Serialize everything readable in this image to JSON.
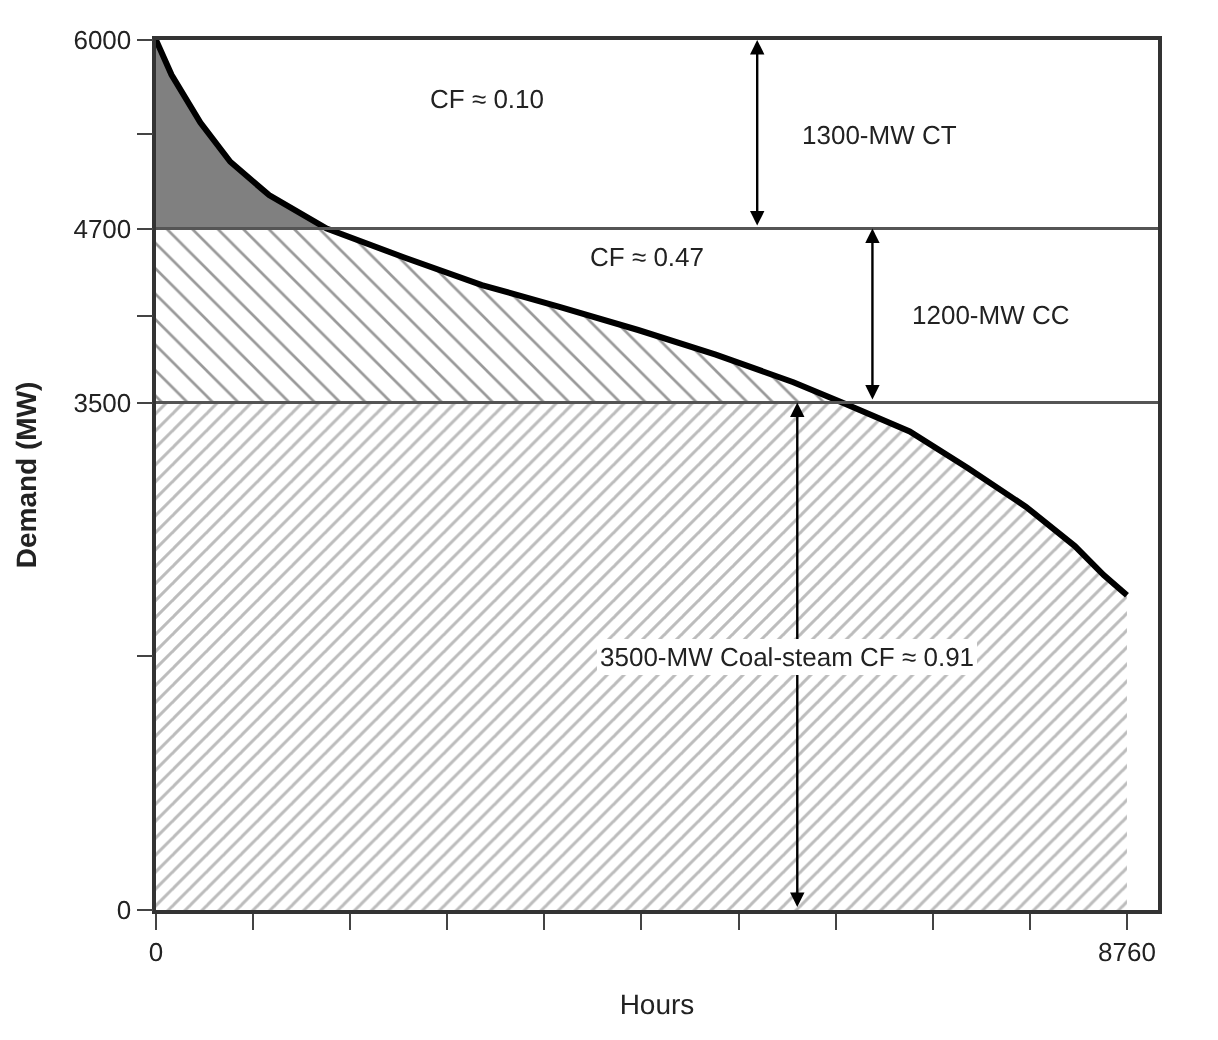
{
  "chart_data": {
    "type": "area",
    "stacked": true,
    "xlabel": "Hours",
    "ylabel": "Demand (MW)",
    "x": [
      0,
      140,
      400,
      670,
      1020,
      1540,
      2240,
      2940,
      3640,
      4350,
      5050,
      5750,
      6190,
      6800,
      7320,
      7850,
      8290,
      8550,
      8760
    ],
    "series": [
      {
        "color": "#7a7a7a",
        "values": [
          3500,
          3500,
          3500,
          3500,
          3500,
          3500,
          3500,
          3500,
          3500,
          3500,
          3500,
          3500,
          3500,
          3300,
          3050,
          2780,
          2510,
          2310,
          2170
        ]
      },
      {
        "color": "#333333",
        "values": [
          1200,
          1200,
          1200,
          1200,
          1200,
          1200,
          1000,
          810,
          660,
          500,
          330,
          140,
          0,
          0,
          0,
          0,
          0,
          0,
          0
        ]
      },
      {
        "color": "#808080",
        "values": [
          1300,
          1060,
          730,
          460,
          230,
          0,
          0,
          0,
          0,
          0,
          0,
          0,
          0,
          0,
          0,
          0,
          0,
          0,
          0
        ]
      }
    ],
    "xlim": [
      0,
      9040
    ],
    "ylim": [
      0,
      6000
    ],
    "xticks": [
      0,
      {
        "value": 876,
        "label": null
      },
      {
        "value": 1752,
        "label": null
      },
      {
        "value": 2628,
        "label": null
      },
      {
        "value": 3504,
        "label": null
      },
      {
        "value": 4380,
        "label": null
      },
      {
        "value": 5256,
        "label": null
      },
      {
        "value": 6132,
        "label": null
      },
      {
        "value": 7008,
        "label": null
      },
      {
        "value": 7884,
        "label": null
      },
      8760
    ],
    "yticks": [
      0,
      {
        "value": 1750,
        "label": null
      },
      3500,
      {
        "value": 4100,
        "label": null
      },
      4700,
      {
        "value": 5350,
        "label": null
      },
      6000
    ],
    "ref_lines": [
      {
        "axis": "y",
        "value": 4700,
        "color": "#555555"
      },
      {
        "axis": "y",
        "value": 3500,
        "color": "#555555"
      }
    ],
    "annotations": [
      "CF ≈ 0.10",
      "CF ≈ 0.47",
      "1300-MW CT",
      "1200-MW CC",
      "3500-MW Coal-steam CF ≈ 0.91"
    ]
  }
}
